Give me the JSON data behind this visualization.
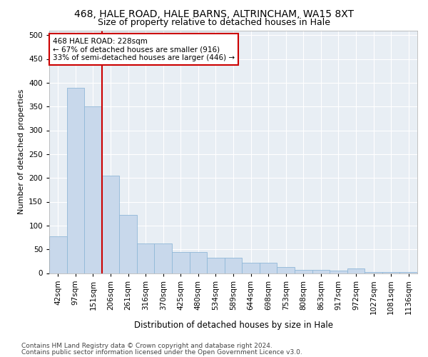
{
  "title1": "468, HALE ROAD, HALE BARNS, ALTRINCHAM, WA15 8XT",
  "title2": "Size of property relative to detached houses in Hale",
  "xlabel": "Distribution of detached houses by size in Hale",
  "ylabel": "Number of detached properties",
  "categories": [
    "42sqm",
    "97sqm",
    "151sqm",
    "206sqm",
    "261sqm",
    "316sqm",
    "370sqm",
    "425sqm",
    "480sqm",
    "534sqm",
    "589sqm",
    "644sqm",
    "698sqm",
    "753sqm",
    "808sqm",
    "863sqm",
    "917sqm",
    "972sqm",
    "1027sqm",
    "1081sqm",
    "1136sqm"
  ],
  "values": [
    78,
    390,
    350,
    205,
    122,
    63,
    63,
    44,
    44,
    32,
    32,
    22,
    22,
    13,
    7,
    7,
    6,
    10,
    3,
    2,
    2
  ],
  "bar_color": "#c8d8eb",
  "bar_edge_color": "#90b8d8",
  "vline_color": "#cc0000",
  "annotation_text": "468 HALE ROAD: 228sqm\n← 67% of detached houses are smaller (916)\n33% of semi-detached houses are larger (446) →",
  "annotation_box_facecolor": "#ffffff",
  "annotation_edge_color": "#cc0000",
  "ylim": [
    0,
    510
  ],
  "yticks": [
    0,
    50,
    100,
    150,
    200,
    250,
    300,
    350,
    400,
    450,
    500
  ],
  "footer1": "Contains HM Land Registry data © Crown copyright and database right 2024.",
  "footer2": "Contains public sector information licensed under the Open Government Licence v3.0.",
  "bg_color": "#ffffff",
  "plot_bg_color": "#e8eef4",
  "grid_color": "#ffffff",
  "title1_fontsize": 10,
  "title2_fontsize": 9,
  "xlabel_fontsize": 8.5,
  "ylabel_fontsize": 8,
  "tick_fontsize": 7.5,
  "footer_fontsize": 6.5,
  "annot_fontsize": 7.5
}
